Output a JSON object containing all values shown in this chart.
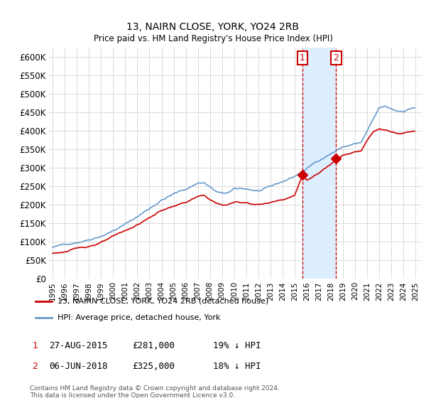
{
  "title": "13, NAIRN CLOSE, YORK, YO24 2RB",
  "subtitle": "Price paid vs. HM Land Registry's House Price Index (HPI)",
  "ylabel_ticks": [
    "£0",
    "£50K",
    "£100K",
    "£150K",
    "£200K",
    "£250K",
    "£300K",
    "£350K",
    "£400K",
    "£450K",
    "£500K",
    "£550K",
    "£600K"
  ],
  "ytick_values": [
    0,
    50000,
    100000,
    150000,
    200000,
    250000,
    300000,
    350000,
    400000,
    450000,
    500000,
    550000,
    600000
  ],
  "ylim": [
    0,
    625000
  ],
  "legend_line1": "13, NAIRN CLOSE, YORK, YO24 2RB (detached house)",
  "legend_line2": "HPI: Average price, detached house, York",
  "annotation1_date": "27-AUG-2015",
  "annotation1_price": "£281,000",
  "annotation1_hpi": "19% ↓ HPI",
  "annotation2_date": "06-JUN-2018",
  "annotation2_price": "£325,000",
  "annotation2_hpi": "18% ↓ HPI",
  "vline1_x": 2015.65,
  "vline2_x": 2018.43,
  "sale1_y": 281000,
  "sale2_y": 325000,
  "shade_xmin": 2015.65,
  "shade_xmax": 2018.43,
  "footnote": "Contains HM Land Registry data © Crown copyright and database right 2024.\nThis data is licensed under the Open Government Licence v3.0.",
  "red_color": "#cc0000",
  "blue_color": "#6699cc",
  "shade_color": "#ddeeff",
  "grid_color": "#cccccc",
  "xtick_years": [
    1995,
    1996,
    1997,
    1998,
    1999,
    2000,
    2001,
    2002,
    2003,
    2004,
    2005,
    2006,
    2007,
    2008,
    2009,
    2010,
    2011,
    2012,
    2013,
    2014,
    2015,
    2016,
    2017,
    2018,
    2019,
    2020,
    2021,
    2022,
    2023,
    2024,
    2025
  ],
  "xlim_min": 1994.7,
  "xlim_max": 2025.5
}
